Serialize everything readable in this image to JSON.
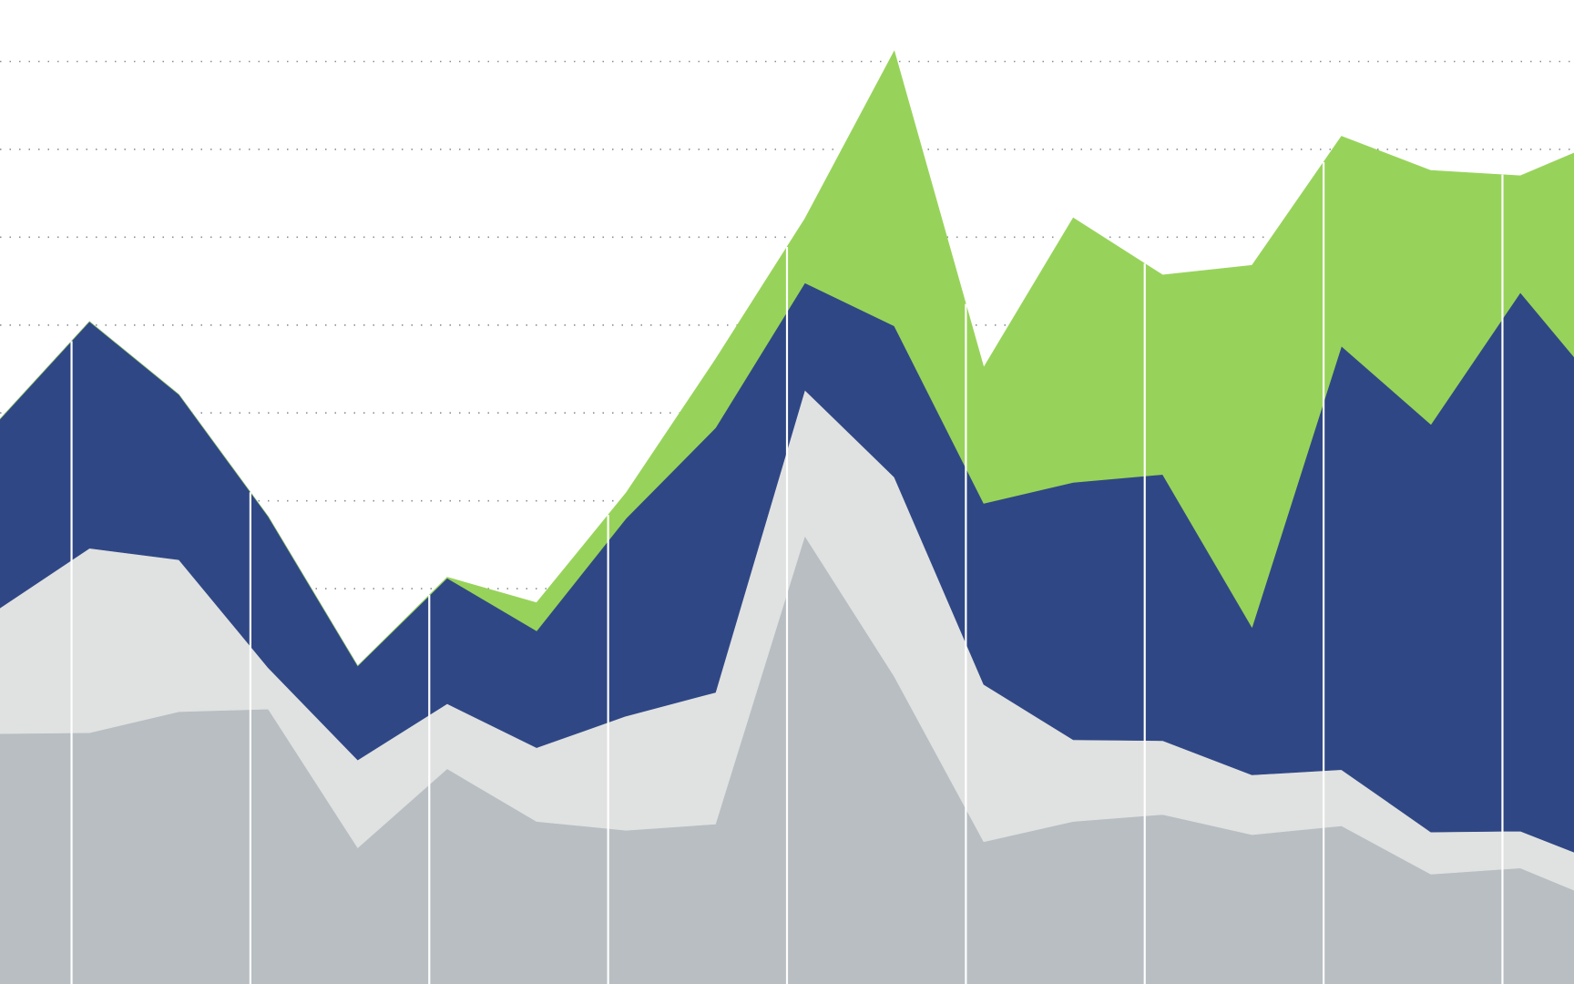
{
  "chart_data": {
    "type": "area",
    "stacked": true,
    "xlabel": "",
    "ylabel": "",
    "x": [
      0,
      1,
      2,
      3,
      4,
      5,
      6,
      7,
      8,
      9,
      10,
      11,
      12,
      13,
      14,
      15,
      16,
      17,
      18
    ],
    "x_range": [
      0,
      17.6
    ],
    "ylim": [
      0,
      112
    ],
    "grid": true,
    "gridlines_y": [
      45,
      55,
      65,
      75,
      85,
      95,
      105
    ],
    "vertical_dividers_x": [
      0.8,
      2.8,
      4.8,
      6.8,
      8.8,
      10.8,
      12.8,
      14.8,
      16.8
    ],
    "legend": "none",
    "series": [
      {
        "color": "#b8bec2",
        "values": [
          28.5,
          28.6,
          31,
          31.3,
          15.5,
          24.5,
          18.5,
          17.5,
          18.2,
          51,
          35,
          16.2,
          18.5,
          19.3,
          17,
          18,
          12.5,
          13.2,
          9
        ]
      },
      {
        "color": "#e0e2e1",
        "values": [
          14.3,
          21,
          17.3,
          4.7,
          10,
          7.4,
          8.4,
          13,
          15,
          16.6,
          22.7,
          17.9,
          9.3,
          8.4,
          6.8,
          6.4,
          4.8,
          4.2,
          4.4
        ]
      },
      {
        "color": "#304785",
        "values": [
          21.5,
          25.8,
          18.8,
          17.2,
          10.7,
          14.3,
          13.3,
          22.5,
          30.1,
          12.2,
          17.2,
          20.6,
          29.3,
          30.3,
          16.8,
          48.2,
          46.4,
          61.3,
          53.1
        ]
      },
      {
        "color": "#97d35a",
        "values": [
          0,
          0,
          0,
          0,
          0,
          0.1,
          3.2,
          2.9,
          7.8,
          7.3,
          31.3,
          15.5,
          30.1,
          22.7,
          41.2,
          23.9,
          28.9,
          13.3,
          29.8
        ]
      }
    ]
  }
}
